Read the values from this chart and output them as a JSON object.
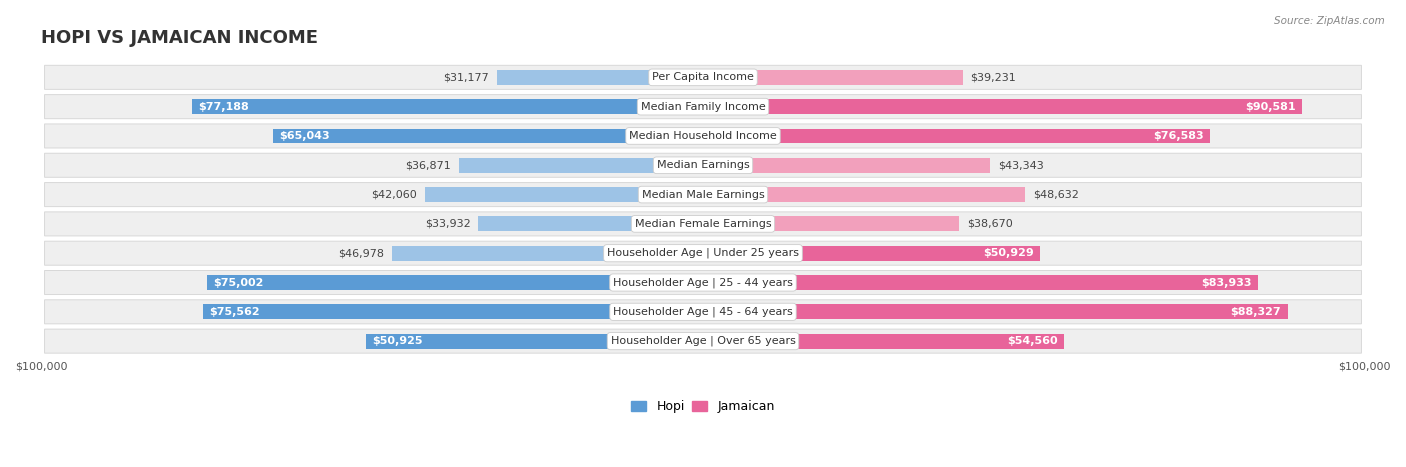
{
  "title": "HOPI VS JAMAICAN INCOME",
  "source": "Source: ZipAtlas.com",
  "categories": [
    "Per Capita Income",
    "Median Family Income",
    "Median Household Income",
    "Median Earnings",
    "Median Male Earnings",
    "Median Female Earnings",
    "Householder Age | Under 25 years",
    "Householder Age | 25 - 44 years",
    "Householder Age | 45 - 64 years",
    "Householder Age | Over 65 years"
  ],
  "hopi_values": [
    31177,
    77188,
    65043,
    36871,
    42060,
    33932,
    46978,
    75002,
    75562,
    50925
  ],
  "jamaican_values": [
    39231,
    90581,
    76583,
    43343,
    48632,
    38670,
    50929,
    83933,
    88327,
    54560
  ],
  "hopi_labels": [
    "$31,177",
    "$77,188",
    "$65,043",
    "$36,871",
    "$42,060",
    "$33,932",
    "$46,978",
    "$75,002",
    "$75,562",
    "$50,925"
  ],
  "jamaican_labels": [
    "$39,231",
    "$90,581",
    "$76,583",
    "$43,343",
    "$48,632",
    "$38,670",
    "$50,929",
    "$83,933",
    "$88,327",
    "$54,560"
  ],
  "max_value": 100000,
  "hopi_bar_color_strong": "#5B9BD5",
  "hopi_bar_color_light": "#9DC3E6",
  "jamaican_bar_color_strong": "#E8649A",
  "jamaican_bar_color_light": "#F2A0BC",
  "row_bg_color": "#EFEFEF",
  "row_border_color": "#D8D8D8",
  "background_color": "#FFFFFF",
  "title_fontsize": 13,
  "label_fontsize": 8.0,
  "category_fontsize": 8.0,
  "axis_label_fontsize": 8,
  "legend_fontsize": 9,
  "hopi_threshold": 50000,
  "jamaican_threshold": 50000
}
